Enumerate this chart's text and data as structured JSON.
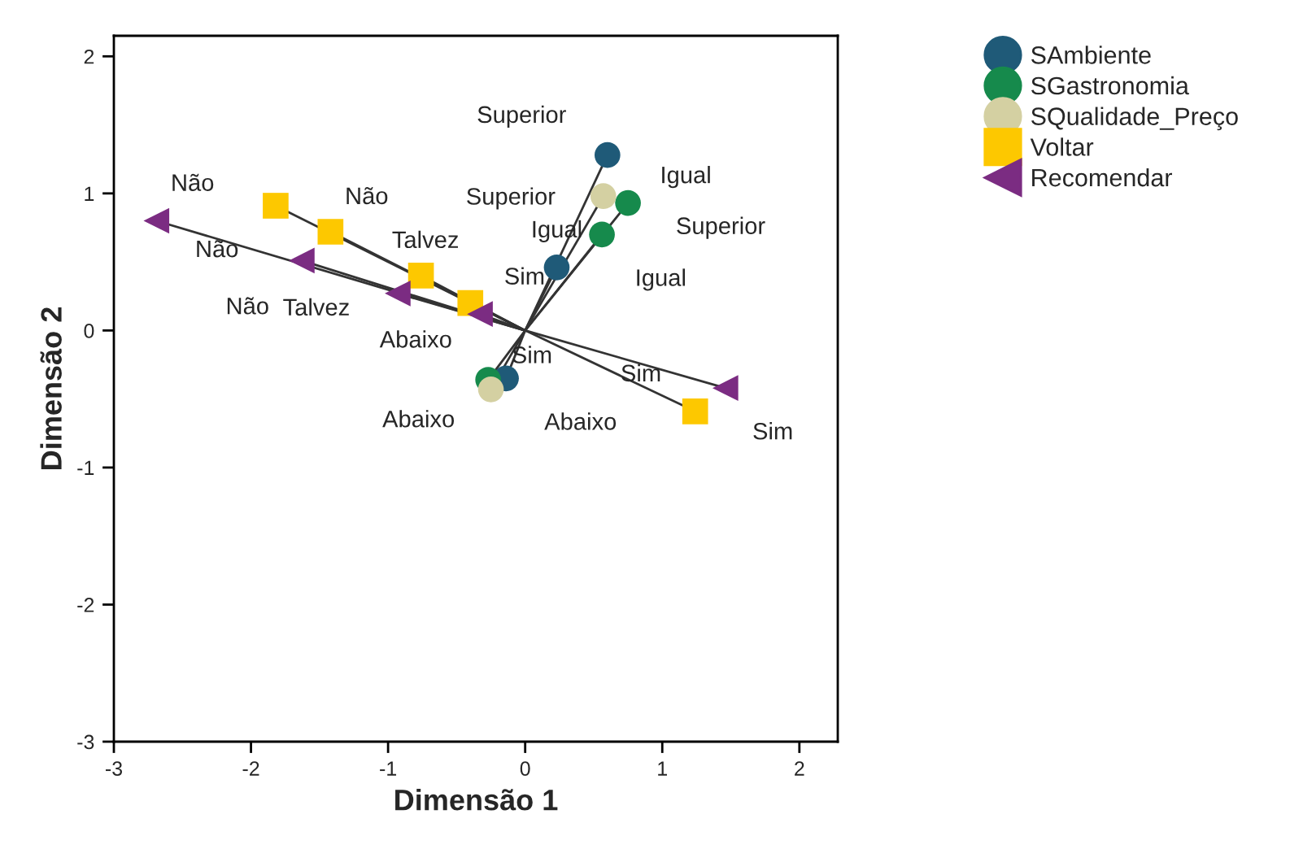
{
  "chart_data": {
    "type": "scatter",
    "xlabel": "Dimensão 1",
    "ylabel": "Dimensão 2",
    "xlim": [
      -3,
      2.28
    ],
    "ylim": [
      -3,
      2.15
    ],
    "xticks": [
      -3,
      -2,
      -1,
      0,
      1,
      2
    ],
    "yticks": [
      -3,
      -2,
      -1,
      0,
      1,
      2
    ],
    "grid": false,
    "legend": "top right",
    "series": [
      {
        "name": "SAmbiente",
        "color": "#1f5a78",
        "marker": "circle",
        "x": [
          0.6,
          0.23,
          -0.14
        ],
        "values": [
          1.28,
          0.46,
          -0.35
        ],
        "value_labels": [
          "Superior",
          "Igual",
          "Abaixo"
        ]
      },
      {
        "name": "SGastronomia",
        "color": "#168a4c",
        "marker": "circle",
        "x": [
          0.75,
          0.56,
          -0.27
        ],
        "values": [
          0.93,
          0.7,
          -0.36
        ],
        "value_labels": [
          "Superior",
          "Igual",
          "Abaixo"
        ]
      },
      {
        "name": "SQualidade_Preço",
        "color": "#d4d0a2",
        "marker": "circle",
        "x": [
          0.57,
          -0.25
        ],
        "values": [
          0.98,
          -0.43
        ],
        "value_labels": [
          "Superior",
          "Abaixo"
        ]
      },
      {
        "name": "Voltar",
        "color": "#fdc800",
        "marker": "square",
        "x": [
          -1.82,
          -1.42,
          -0.76,
          -0.4,
          1.24
        ],
        "values": [
          0.91,
          0.72,
          0.4,
          0.2,
          -0.59
        ],
        "value_labels": [
          "Não",
          "Não",
          "Talvez",
          "Sim",
          "Sim"
        ]
      },
      {
        "name": "Recomendar",
        "color": "#7b2c82",
        "marker": "triangle",
        "x": [
          -2.69,
          -1.63,
          -0.93,
          -0.33,
          1.46
        ],
        "values": [
          0.8,
          0.51,
          0.27,
          0.12,
          -0.42
        ],
        "value_labels": [
          "Não",
          "Não",
          "Talvez",
          "Sim",
          "Sim"
        ]
      }
    ],
    "annotations": [
      "Igual"
    ]
  }
}
